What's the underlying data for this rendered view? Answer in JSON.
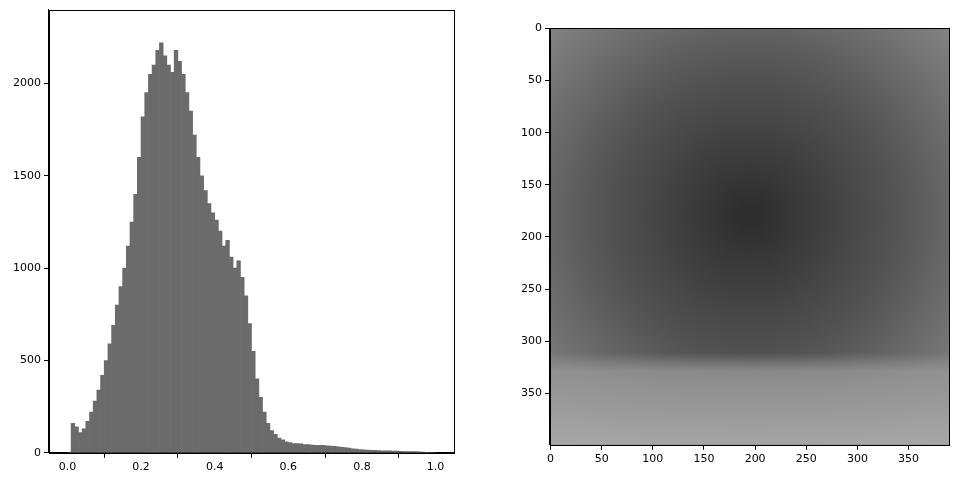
{
  "chart_data": [
    {
      "type": "histogram",
      "bins": [
        0,
        0.01,
        0.02,
        0.03,
        0.04,
        0.05,
        0.06,
        0.07,
        0.08,
        0.09,
        0.1,
        0.11,
        0.12,
        0.13,
        0.14,
        0.15,
        0.16,
        0.17,
        0.18,
        0.19,
        0.2,
        0.21,
        0.22,
        0.23,
        0.24,
        0.25,
        0.26,
        0.27,
        0.28,
        0.29,
        0.3,
        0.31,
        0.32,
        0.33,
        0.34,
        0.35,
        0.36,
        0.37,
        0.38,
        0.39,
        0.4,
        0.41,
        0.42,
        0.43,
        0.44,
        0.45,
        0.46,
        0.47,
        0.48,
        0.49,
        0.5,
        0.51,
        0.52,
        0.53,
        0.54,
        0.55,
        0.56,
        0.57,
        0.58,
        0.59,
        0.6,
        0.61,
        0.62,
        0.63,
        0.64,
        0.65,
        0.66,
        0.67,
        0.68,
        0.69,
        0.7,
        0.71,
        0.72,
        0.73,
        0.74,
        0.75,
        0.76,
        0.77,
        0.78,
        0.79,
        0.8,
        0.81,
        0.82,
        0.83,
        0.84,
        0.85,
        0.86,
        0.87,
        0.88,
        0.89,
        0.9,
        0.91,
        0.92,
        0.93,
        0.94,
        0.95,
        0.96,
        0.97,
        0.98,
        0.99,
        1
      ],
      "counts": [
        0,
        160,
        140,
        110,
        130,
        170,
        220,
        280,
        340,
        420,
        500,
        590,
        690,
        800,
        900,
        1000,
        1120,
        1250,
        1400,
        1600,
        1820,
        1950,
        2050,
        2100,
        2180,
        2220,
        2150,
        2100,
        2060,
        2180,
        2120,
        2050,
        1950,
        1850,
        1720,
        1600,
        1500,
        1420,
        1350,
        1300,
        1260,
        1200,
        1120,
        1150,
        1060,
        1000,
        1040,
        950,
        850,
        700,
        550,
        400,
        300,
        220,
        160,
        120,
        100,
        80,
        70,
        60,
        55,
        50,
        50,
        48,
        45,
        45,
        42,
        40,
        40,
        40,
        38,
        36,
        35,
        32,
        30,
        28,
        25,
        22,
        20,
        18,
        16,
        15,
        14,
        13,
        12,
        11,
        10,
        10,
        9,
        9,
        8,
        7,
        7,
        6,
        6,
        5,
        4,
        2,
        0,
        0
      ],
      "color": "#6b6b6b",
      "xlim": [
        -0.05,
        1.05
      ],
      "xticks": [
        {
          "value": 0,
          "label": "0.0"
        },
        0.2,
        0.4,
        0.6,
        0.8,
        {
          "value": 1,
          "label": "1.0"
        }
      ],
      "ylim": [
        0,
        2400
      ],
      "yticks": [
        0,
        500,
        1000,
        1500,
        2000
      ],
      "grid": false
    },
    {
      "type": "image",
      "xlim": [
        -0.5,
        389.5
      ],
      "xticks": [
        0,
        50,
        100,
        150,
        200,
        250,
        300,
        350
      ],
      "ylim": [
        399.5,
        -0.5
      ],
      "yticks": [
        0,
        50,
        100,
        150,
        200,
        250,
        300,
        350
      ],
      "grid": false
    }
  ]
}
